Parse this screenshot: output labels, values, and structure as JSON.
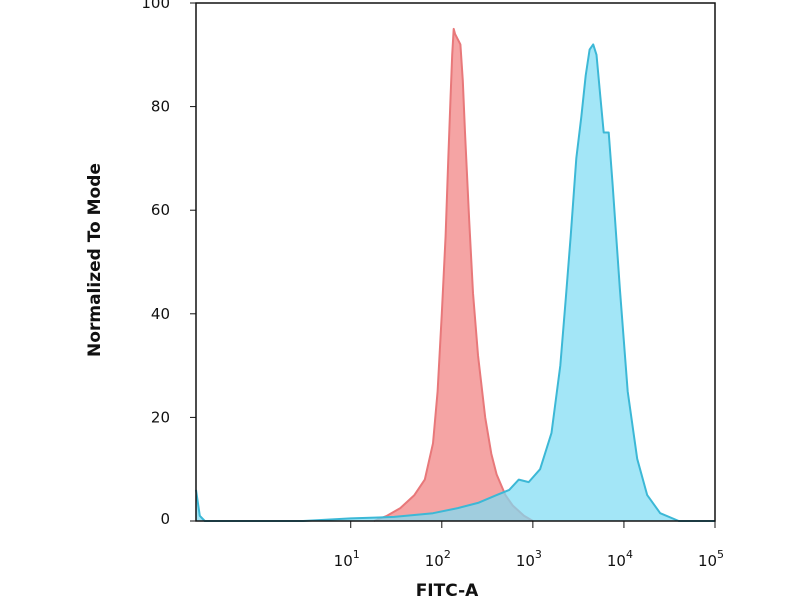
{
  "chart_data": {
    "type": "area",
    "xlabel": "FITC-A",
    "ylabel": "Normalized To Mode",
    "xscale": "log",
    "xlim": [
      0.2,
      100000
    ],
    "ylim": [
      0,
      100
    ],
    "grid": false,
    "legend": "none",
    "x_ticks": [
      {
        "value": 10,
        "base": "10",
        "exp": "1"
      },
      {
        "value": 100,
        "base": "10",
        "exp": "2"
      },
      {
        "value": 1000,
        "base": "10",
        "exp": "3"
      },
      {
        "value": 10000,
        "base": "10",
        "exp": "4"
      },
      {
        "value": 100000,
        "base": "10",
        "exp": "5"
      }
    ],
    "y_ticks": [
      "0",
      "20",
      "40",
      "60",
      "80",
      "100"
    ],
    "series": [
      {
        "color": "#e8787a",
        "fill": "#f49a9a",
        "points": [
          [
            18,
            0
          ],
          [
            25,
            1
          ],
          [
            35,
            2.5
          ],
          [
            50,
            5
          ],
          [
            65,
            8
          ],
          [
            80,
            15
          ],
          [
            90,
            25
          ],
          [
            100,
            40
          ],
          [
            110,
            55
          ],
          [
            118,
            70
          ],
          [
            125,
            82
          ],
          [
            130,
            90
          ],
          [
            135,
            95
          ],
          [
            140,
            94
          ],
          [
            150,
            93
          ],
          [
            160,
            92
          ],
          [
            170,
            85
          ],
          [
            180,
            75
          ],
          [
            200,
            58
          ],
          [
            220,
            44
          ],
          [
            250,
            32
          ],
          [
            300,
            20
          ],
          [
            350,
            13
          ],
          [
            400,
            9
          ],
          [
            500,
            5
          ],
          [
            600,
            3
          ],
          [
            800,
            1
          ],
          [
            1000,
            0
          ]
        ]
      },
      {
        "color": "#3cb8d6",
        "fill": "#7fdcf4",
        "points": [
          [
            0.2,
            6
          ],
          [
            0.22,
            1
          ],
          [
            0.25,
            0
          ],
          [
            3,
            0
          ],
          [
            10,
            0.5
          ],
          [
            30,
            0.8
          ],
          [
            80,
            1.5
          ],
          [
            150,
            2.5
          ],
          [
            250,
            3.5
          ],
          [
            400,
            5
          ],
          [
            550,
            6
          ],
          [
            700,
            8
          ],
          [
            900,
            7.5
          ],
          [
            1200,
            10
          ],
          [
            1600,
            17
          ],
          [
            2000,
            30
          ],
          [
            2300,
            43
          ],
          [
            2600,
            55
          ],
          [
            3000,
            70
          ],
          [
            3400,
            78
          ],
          [
            3800,
            86
          ],
          [
            4200,
            91
          ],
          [
            4600,
            92
          ],
          [
            5000,
            90
          ],
          [
            5500,
            82
          ],
          [
            6000,
            75
          ],
          [
            6800,
            75
          ],
          [
            7500,
            65
          ],
          [
            9000,
            45
          ],
          [
            11000,
            25
          ],
          [
            14000,
            12
          ],
          [
            18000,
            5
          ],
          [
            25000,
            1.5
          ],
          [
            40000,
            0
          ],
          [
            100000,
            0
          ]
        ]
      }
    ]
  }
}
